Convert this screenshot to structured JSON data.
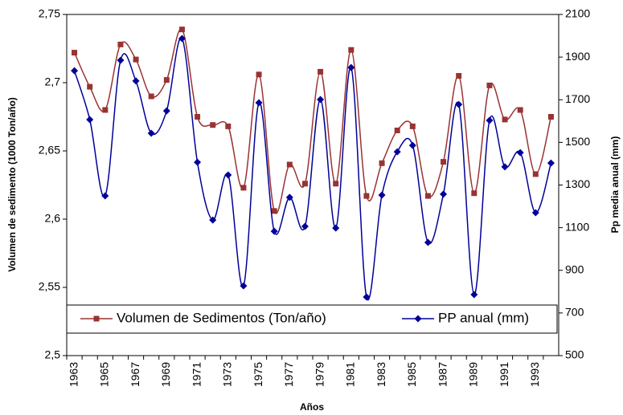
{
  "chart_data": {
    "type": "line",
    "x_label": "Años",
    "y_label": "Volumen de sedimento (1000 Ton/año)",
    "y2_label": "Pp media anual (mm)",
    "categories": [
      "1963",
      null,
      "1965",
      null,
      "1967",
      null,
      "1969",
      null,
      "1971",
      null,
      "1973",
      null,
      "1975",
      null,
      "1977",
      null,
      "1979",
      null,
      "1981",
      null,
      "1983",
      null,
      "1985",
      null,
      "1987",
      null,
      "1989",
      null,
      "1991",
      null,
      "1993",
      null
    ],
    "series": [
      {
        "name": "Volumen de Sedimentos (Ton/año)",
        "color": "#993333",
        "marker": "square",
        "values": [
          2.722,
          2.697,
          2.68,
          2.728,
          2.717,
          2.69,
          2.702,
          2.739,
          2.675,
          2.669,
          2.668,
          2.623,
          2.706,
          2.606,
          2.64,
          2.626,
          2.708,
          2.626,
          2.724,
          2.617,
          2.641,
          2.665,
          2.668,
          2.617,
          2.642,
          2.705,
          2.619,
          2.698,
          2.673,
          2.68,
          2.633,
          2.675
        ]
      },
      {
        "name": "PP anual (mm)",
        "color": "#000099",
        "marker": "diamond",
        "axis": "y2",
        "values": [
          1836,
          1607,
          1249,
          1885,
          1788,
          1543,
          1648,
          1987,
          1407,
          1136,
          1347,
          827,
          1686,
          1083,
          1242,
          1106,
          1701,
          1098,
          1851,
          775,
          1253,
          1456,
          1486,
          1031,
          1257,
          1678,
          786,
          1603,
          1385,
          1452,
          1170,
          1403
        ]
      }
    ],
    "ylim": [
      2.5,
      2.75
    ],
    "yticks": [
      {
        "value": 2.5,
        "label": "2,5"
      },
      {
        "value": 2.55,
        "label": "2,55"
      },
      {
        "value": 2.6,
        "label": "2,6"
      },
      {
        "value": 2.65,
        "label": "2,65"
      },
      {
        "value": 2.7,
        "label": "2,7"
      },
      {
        "value": 2.75,
        "label": "2,75"
      }
    ],
    "y2lim": [
      500,
      2100
    ],
    "y2ticks": [
      500,
      700,
      900,
      1100,
      1300,
      1500,
      1700,
      1900,
      2100
    ],
    "smooth": true,
    "legend": "bottom"
  }
}
